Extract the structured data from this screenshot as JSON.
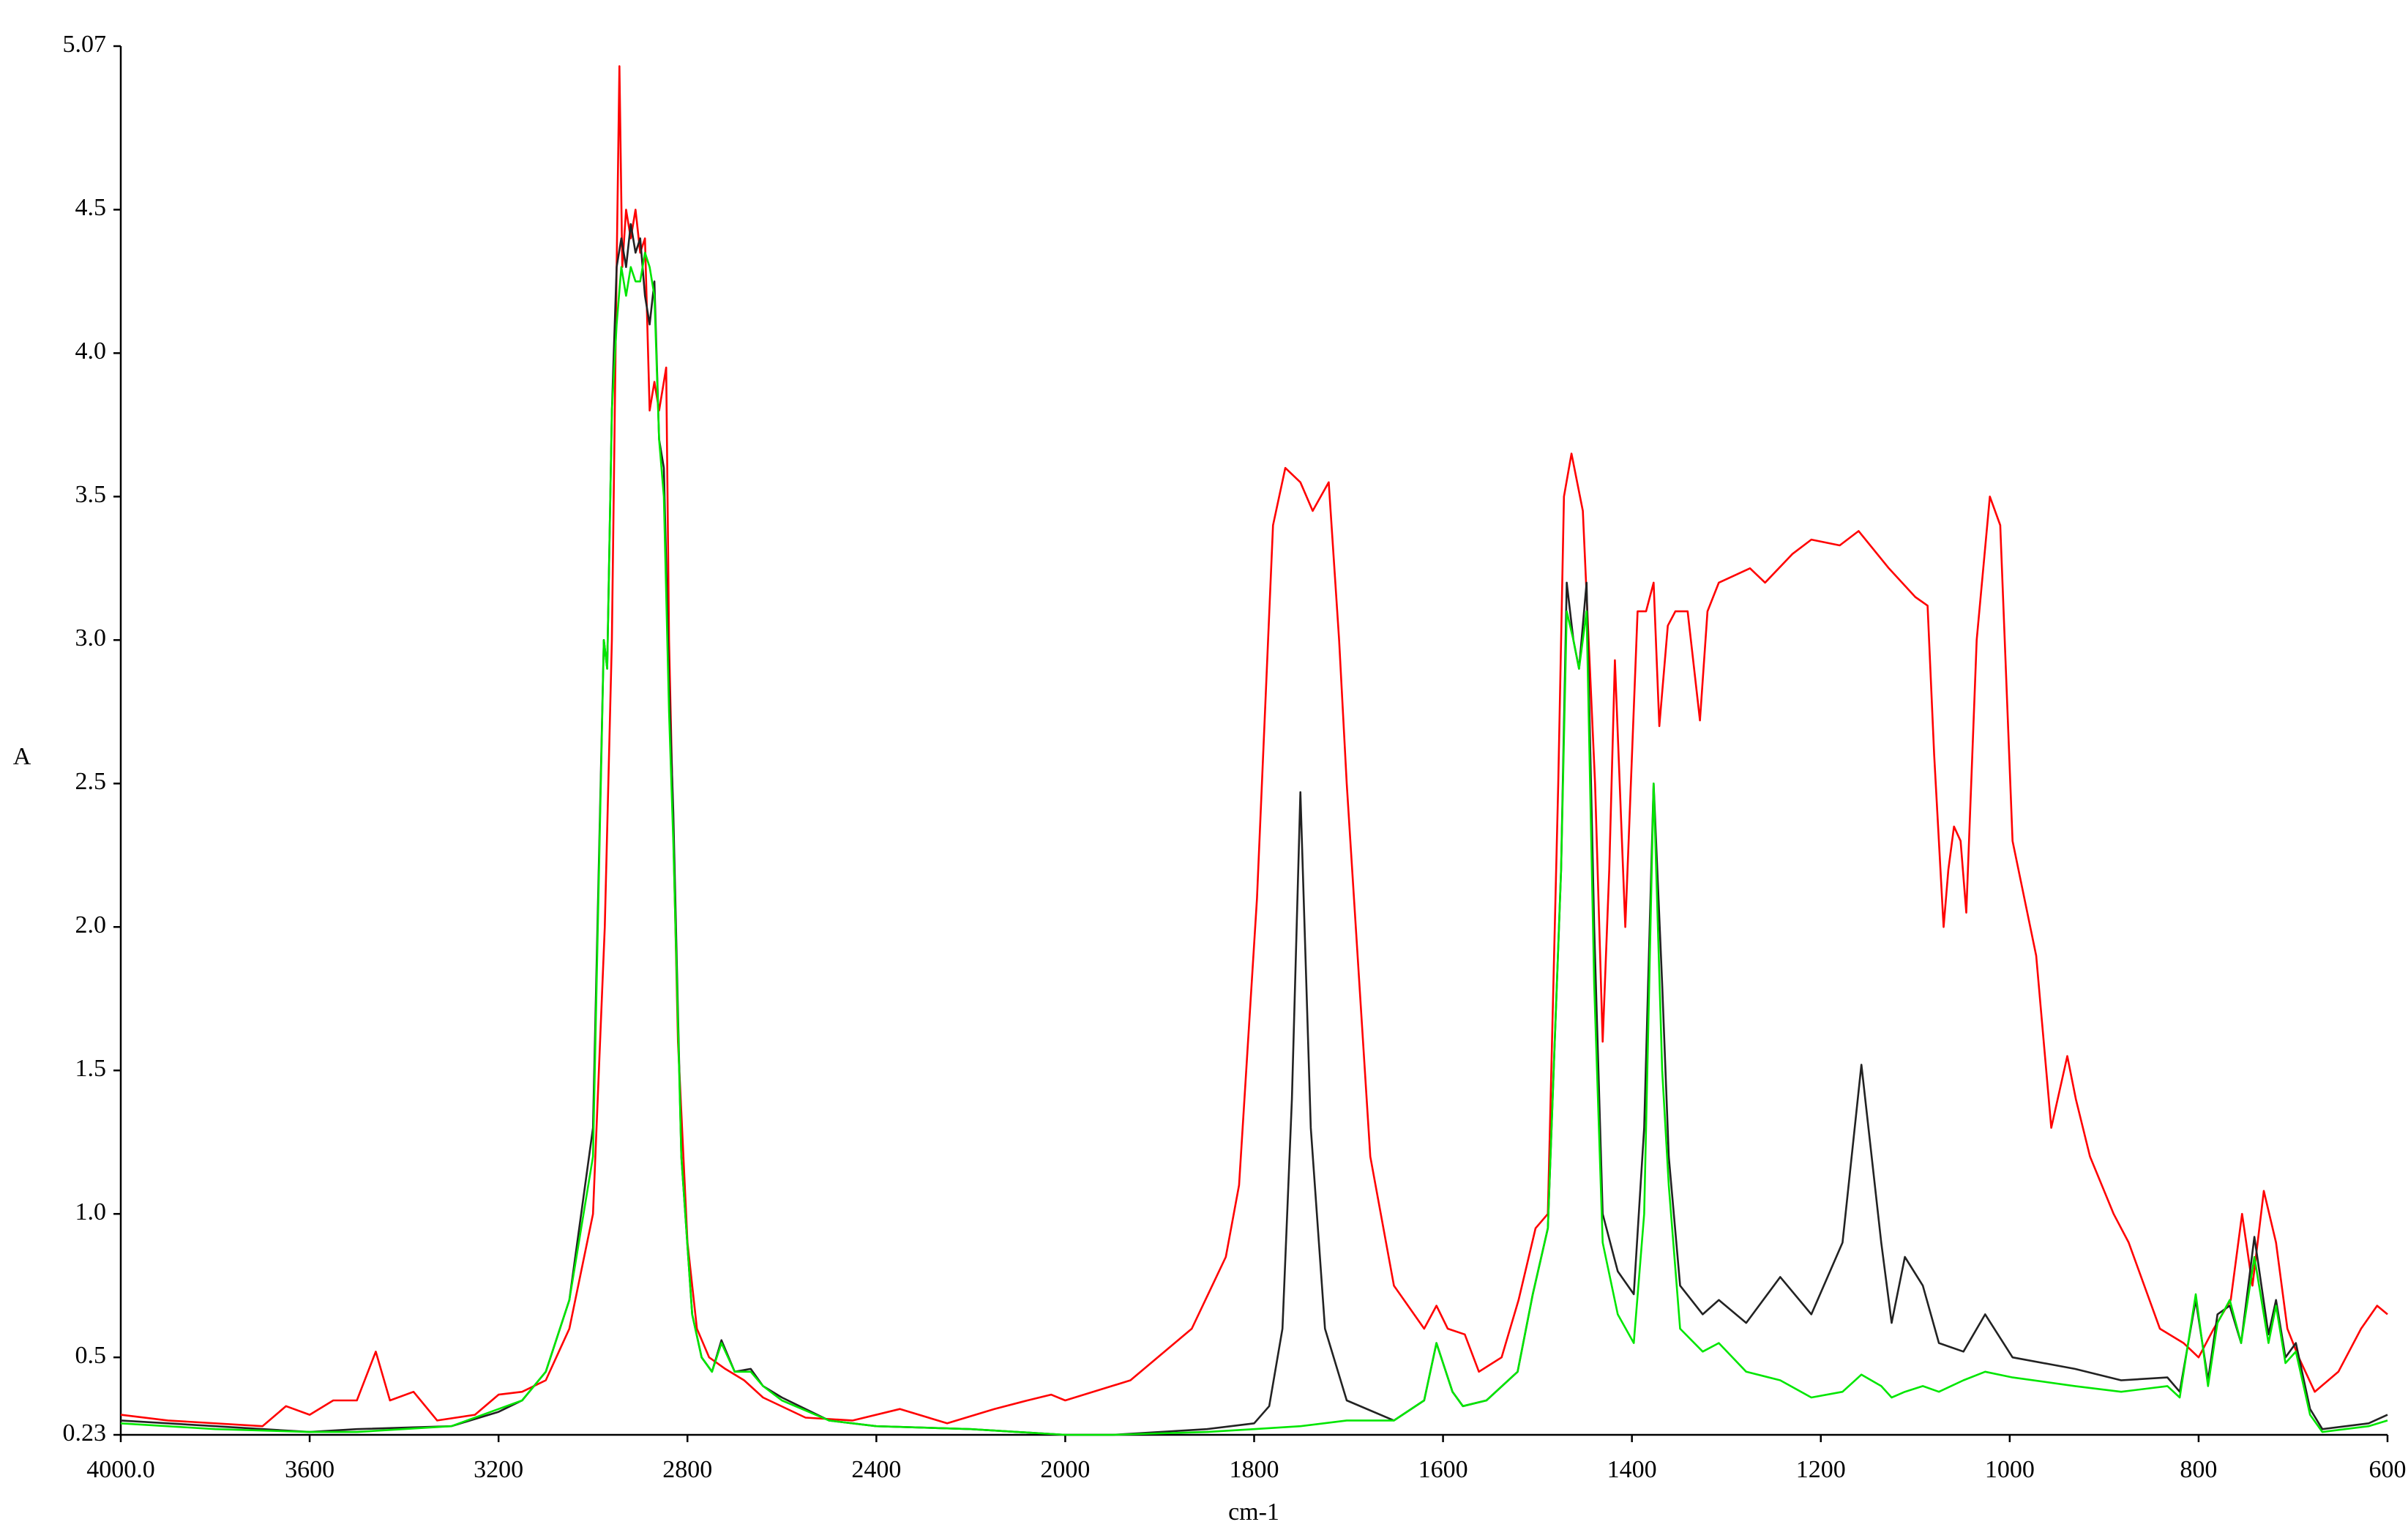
{
  "chart_data": {
    "type": "line",
    "xlabel": "cm-1",
    "ylabel": "A",
    "xlim": [
      4000,
      600
    ],
    "ylim": [
      0.23,
      5.07
    ],
    "xscale": "piecewise-linear",
    "xticks": [
      {
        "value": 4000,
        "label": "4000.0"
      },
      3600,
      3200,
      2800,
      2400,
      2000,
      1800,
      1600,
      1400,
      1200,
      1000,
      800,
      600
    ],
    "yticks": [
      0.23,
      0.5,
      {
        "value": 1,
        "label": "1.0"
      },
      1.5,
      {
        "value": 2,
        "label": "2.0"
      },
      2.5,
      {
        "value": 3,
        "label": "3.0"
      },
      3.5,
      {
        "value": 4,
        "label": "4.0"
      },
      4.5,
      5.07
    ],
    "grid": false,
    "series": [
      {
        "color": "#ff0000",
        "x": [
          4000,
          3900,
          3700,
          3650,
          3600,
          3550,
          3500,
          3460,
          3430,
          3380,
          3330,
          3250,
          3200,
          3150,
          3100,
          3050,
          3000,
          2975,
          2960,
          2950,
          2944,
          2938,
          2930,
          2920,
          2910,
          2900,
          2890,
          2880,
          2870,
          2860,
          2850,
          2845,
          2839,
          2820,
          2800,
          2780,
          2754,
          2720,
          2680,
          2640,
          2550,
          2450,
          2350,
          2250,
          2150,
          2080,
          2030,
          2000,
          1931,
          1866,
          1830,
          1816,
          1797,
          1780,
          1767,
          1751,
          1738,
          1721,
          1710,
          1702,
          1677,
          1652,
          1620,
          1607,
          1595,
          1577,
          1562,
          1538,
          1520,
          1502,
          1489,
          1478,
          1472,
          1464,
          1452,
          1439,
          1431,
          1424,
          1418,
          1407,
          1394,
          1385,
          1377,
          1371,
          1362,
          1354,
          1341,
          1328,
          1320,
          1308,
          1275,
          1259,
          1230,
          1210,
          1180,
          1160,
          1128,
          1100,
          1087,
          1080,
          1070,
          1065,
          1059,
          1052,
          1046,
          1035,
          1021,
          1010,
          997,
          972,
          956,
          939,
          930,
          915,
          890,
          874,
          841,
          816,
          800,
          784,
          766,
          754,
          743,
          731,
          718,
          706,
          694,
          677,
          652,
          628,
          611,
          600
        ],
        "values": [
          0.3,
          0.28,
          0.26,
          0.33,
          0.3,
          0.35,
          0.35,
          0.52,
          0.35,
          0.38,
          0.28,
          0.3,
          0.37,
          0.38,
          0.42,
          0.6,
          1.0,
          2.0,
          3.0,
          4.3,
          5.0,
          4.3,
          4.5,
          4.4,
          4.5,
          4.35,
          4.4,
          3.8,
          3.9,
          3.8,
          3.9,
          3.95,
          3.0,
          1.6,
          0.9,
          0.6,
          0.5,
          0.46,
          0.42,
          0.36,
          0.29,
          0.28,
          0.32,
          0.27,
          0.32,
          0.35,
          0.37,
          0.35,
          0.42,
          0.6,
          0.85,
          1.1,
          2.1,
          3.4,
          3.6,
          3.55,
          3.45,
          3.55,
          3.0,
          2.5,
          1.2,
          0.75,
          0.6,
          0.68,
          0.6,
          0.58,
          0.45,
          0.5,
          0.7,
          0.95,
          1.0,
          2.5,
          3.5,
          3.65,
          3.45,
          2.5,
          1.6,
          2.2,
          2.93,
          2.0,
          3.1,
          3.1,
          3.2,
          2.7,
          3.05,
          3.1,
          3.1,
          2.72,
          3.1,
          3.2,
          3.25,
          3.2,
          3.3,
          3.35,
          3.33,
          3.38,
          3.25,
          3.15,
          3.12,
          2.6,
          2.0,
          2.2,
          2.35,
          2.3,
          2.05,
          3.0,
          3.5,
          3.4,
          2.3,
          1.9,
          1.3,
          1.55,
          1.4,
          1.2,
          1.0,
          0.9,
          0.6,
          0.55,
          0.5,
          0.6,
          0.7,
          1.0,
          0.75,
          1.08,
          0.9,
          0.6,
          0.5,
          0.38,
          0.45,
          0.6,
          0.68,
          0.65
        ]
      },
      {
        "color": "#222222",
        "x": [
          4000,
          3800,
          3600,
          3500,
          3300,
          3200,
          3150,
          3100,
          3050,
          3000,
          2977,
          2970,
          2960,
          2950,
          2940,
          2930,
          2920,
          2910,
          2900,
          2890,
          2880,
          2870,
          2860,
          2850,
          2839,
          2830,
          2813,
          2790,
          2770,
          2748,
          2728,
          2700,
          2666,
          2640,
          2600,
          2500,
          2400,
          2200,
          2000,
          1950,
          1850,
          1800,
          1784,
          1770,
          1760,
          1751,
          1740,
          1725,
          1702,
          1652,
          1620,
          1607,
          1590,
          1579,
          1554,
          1521,
          1505,
          1489,
          1475,
          1469,
          1462,
          1456,
          1448,
          1440,
          1431,
          1415,
          1398,
          1387,
          1377,
          1368,
          1361,
          1349,
          1325,
          1308,
          1279,
          1243,
          1210,
          1177,
          1157,
          1136,
          1125,
          1111,
          1092,
          1075,
          1049,
          1026,
          997,
          931,
          882,
          833,
          820,
          803,
          790,
          780,
          767,
          755,
          741,
          726,
          718,
          708,
          697,
          682,
          669,
          620,
          600
        ],
        "values": [
          0.28,
          0.26,
          0.24,
          0.25,
          0.26,
          0.31,
          0.35,
          0.45,
          0.7,
          1.3,
          3.0,
          2.9,
          3.8,
          4.3,
          4.4,
          4.3,
          4.45,
          4.35,
          4.4,
          4.2,
          4.1,
          4.25,
          3.7,
          3.6,
          2.85,
          2.4,
          1.2,
          0.65,
          0.5,
          0.45,
          0.56,
          0.45,
          0.46,
          0.4,
          0.36,
          0.28,
          0.26,
          0.25,
          0.23,
          0.23,
          0.25,
          0.27,
          0.33,
          0.6,
          1.4,
          2.47,
          1.3,
          0.6,
          0.35,
          0.28,
          0.35,
          0.55,
          0.38,
          0.33,
          0.35,
          0.45,
          0.72,
          0.95,
          2.2,
          3.2,
          3.0,
          2.9,
          3.2,
          2.0,
          1.0,
          0.8,
          0.72,
          1.3,
          2.5,
          1.8,
          1.2,
          0.75,
          0.65,
          0.7,
          0.62,
          0.78,
          0.65,
          0.9,
          1.52,
          0.9,
          0.62,
          0.85,
          0.75,
          0.55,
          0.52,
          0.65,
          0.5,
          0.46,
          0.42,
          0.43,
          0.38,
          0.7,
          0.42,
          0.65,
          0.68,
          0.55,
          0.92,
          0.58,
          0.7,
          0.5,
          0.55,
          0.32,
          0.25,
          0.27,
          0.3
        ]
      },
      {
        "color": "#00e600",
        "x": [
          4000,
          3800,
          3600,
          3500,
          3300,
          3200,
          3150,
          3100,
          3050,
          3000,
          2977,
          2970,
          2960,
          2950,
          2940,
          2930,
          2920,
          2910,
          2900,
          2890,
          2880,
          2870,
          2860,
          2850,
          2839,
          2830,
          2813,
          2790,
          2770,
          2748,
          2728,
          2700,
          2666,
          2640,
          2600,
          2500,
          2400,
          2200,
          2000,
          1950,
          1850,
          1800,
          1751,
          1702,
          1652,
          1620,
          1607,
          1590,
          1579,
          1554,
          1521,
          1505,
          1489,
          1475,
          1469,
          1462,
          1456,
          1448,
          1440,
          1431,
          1415,
          1398,
          1387,
          1377,
          1368,
          1361,
          1349,
          1325,
          1308,
          1279,
          1243,
          1210,
          1177,
          1157,
          1136,
          1125,
          1111,
          1092,
          1075,
          1049,
          1026,
          997,
          931,
          882,
          833,
          820,
          803,
          790,
          780,
          767,
          755,
          741,
          726,
          718,
          708,
          697,
          682,
          669,
          620,
          600
        ],
        "values": [
          0.27,
          0.25,
          0.24,
          0.24,
          0.26,
          0.32,
          0.35,
          0.45,
          0.7,
          1.2,
          3.0,
          2.9,
          3.8,
          4.1,
          4.3,
          4.2,
          4.3,
          4.25,
          4.25,
          4.35,
          4.3,
          4.2,
          3.7,
          3.5,
          2.75,
          2.3,
          1.2,
          0.65,
          0.5,
          0.45,
          0.55,
          0.45,
          0.45,
          0.4,
          0.35,
          0.28,
          0.26,
          0.25,
          0.23,
          0.23,
          0.24,
          0.25,
          0.26,
          0.28,
          0.28,
          0.35,
          0.55,
          0.38,
          0.33,
          0.35,
          0.45,
          0.72,
          0.95,
          2.2,
          3.1,
          3.0,
          2.9,
          3.1,
          1.8,
          0.9,
          0.65,
          0.55,
          1.0,
          2.5,
          1.5,
          1.1,
          0.6,
          0.52,
          0.55,
          0.45,
          0.42,
          0.36,
          0.38,
          0.44,
          0.4,
          0.36,
          0.38,
          0.4,
          0.38,
          0.42,
          0.45,
          0.43,
          0.4,
          0.38,
          0.4,
          0.36,
          0.72,
          0.4,
          0.62,
          0.7,
          0.55,
          0.85,
          0.55,
          0.68,
          0.48,
          0.52,
          0.3,
          0.24,
          0.26,
          0.28
        ]
      }
    ]
  }
}
